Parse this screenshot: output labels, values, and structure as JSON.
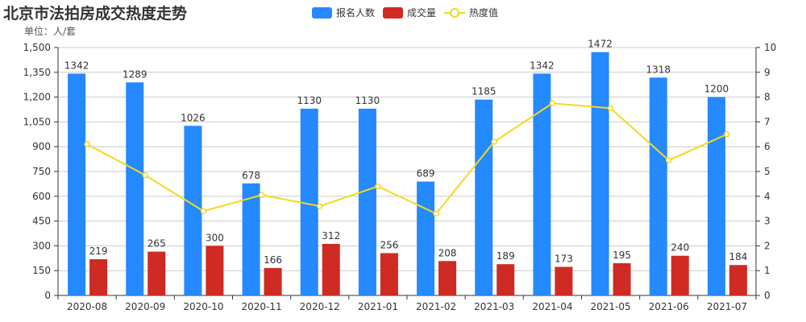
{
  "chart_data": {
    "type": "bar",
    "title": "北京市法拍房成交热度走势",
    "unit_label": "单位：人/套",
    "categories": [
      "2020-08",
      "2020-09",
      "2020-10",
      "2020-11",
      "2020-12",
      "2021-01",
      "2021-02",
      "2021-03",
      "2021-04",
      "2021-05",
      "2021-06",
      "2021-07"
    ],
    "series": [
      {
        "name": "报名人数",
        "type": "bar",
        "axis": "left",
        "color": "#2589ff",
        "values": [
          1342,
          1289,
          1026,
          678,
          1130,
          1130,
          689,
          1185,
          1342,
          1472,
          1318,
          1200
        ]
      },
      {
        "name": "成交量",
        "type": "bar",
        "axis": "left",
        "color": "#d02a24",
        "values": [
          219,
          265,
          300,
          166,
          312,
          256,
          208,
          189,
          173,
          195,
          240,
          184
        ]
      },
      {
        "name": "热度值",
        "type": "line",
        "axis": "right",
        "color": "#f2da1e",
        "values": [
          6.1,
          4.85,
          3.4,
          4.05,
          3.6,
          4.4,
          3.3,
          6.2,
          7.75,
          7.55,
          5.45,
          6.5
        ]
      }
    ],
    "left_axis": {
      "ylim": [
        0,
        1500
      ],
      "ticks": [
        "0",
        "150",
        "300",
        "450",
        "600",
        "750",
        "900",
        "1,050",
        "1,200",
        "1,350",
        "1,500"
      ]
    },
    "right_axis": {
      "ylim": [
        0,
        10
      ],
      "ticks": [
        "0",
        "1",
        "2",
        "3",
        "4",
        "5",
        "6",
        "7",
        "8",
        "9",
        "10"
      ]
    },
    "grid": true,
    "legend_position": "top-center"
  }
}
